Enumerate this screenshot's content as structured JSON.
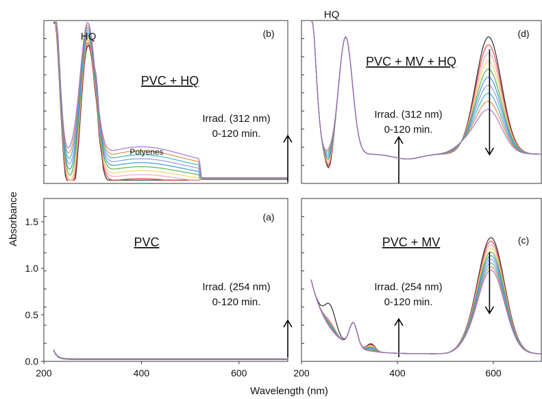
{
  "figure": {
    "ylabel": "Absorbance",
    "xlabel": "Wavelength (nm)"
  },
  "colors": [
    "#111111",
    "#e03030",
    "#f29ab0",
    "#f0d050",
    "#44aa44",
    "#2090d0",
    "#8888ee",
    "#20b0b0",
    "#e08030",
    "#9966cc"
  ],
  "chart_data": [
    {
      "id": "b",
      "type": "line",
      "panel_label": "(b)",
      "title": "PVC + HQ",
      "peak_label": "HQ",
      "annotation": "Polyenes",
      "arrow_text": [
        "Irrad. (312 nm)",
        "0-120 min."
      ],
      "arrow_direction": "up",
      "xlim": [
        200,
        700
      ],
      "ylim": [
        0,
        1.0
      ],
      "yticks": [],
      "xticks": [],
      "series_count": 10
    },
    {
      "id": "d",
      "type": "line",
      "panel_label": "(d)",
      "title": "PVC + MV + HQ",
      "peak_label": "HQ",
      "arrow_text": [
        "Irrad. (312 nm)",
        "0-120 min."
      ],
      "arrow_direction_mid": "up",
      "arrow_direction_peak": "down",
      "xlim": [
        200,
        700
      ],
      "ylim": [
        0,
        1.0
      ],
      "yticks": [],
      "xticks": [],
      "series_count": 10
    },
    {
      "id": "a",
      "type": "line",
      "panel_label": "(a)",
      "title": "PVC",
      "arrow_text": [
        "Irrad. (254 nm)",
        "0-120 min."
      ],
      "arrow_direction": "up",
      "xlim": [
        200,
        700
      ],
      "ylim": [
        0,
        1.75
      ],
      "yticks": [
        "0.0",
        "0.5",
        "1.0",
        "1.5"
      ],
      "xticks": [
        "200",
        "400",
        "600"
      ],
      "series_count": 10
    },
    {
      "id": "c",
      "type": "line",
      "panel_label": "(c)",
      "title": "PVC + MV",
      "arrow_text": [
        "Irrad. (254 nm)",
        "0-120 min."
      ],
      "arrow_direction_mid": "up",
      "arrow_direction_peak": "down",
      "xlim": [
        200,
        700
      ],
      "ylim": [
        0,
        1.75
      ],
      "yticks": [],
      "xticks": [
        "200",
        "400",
        "600"
      ],
      "series_count": 10
    }
  ]
}
